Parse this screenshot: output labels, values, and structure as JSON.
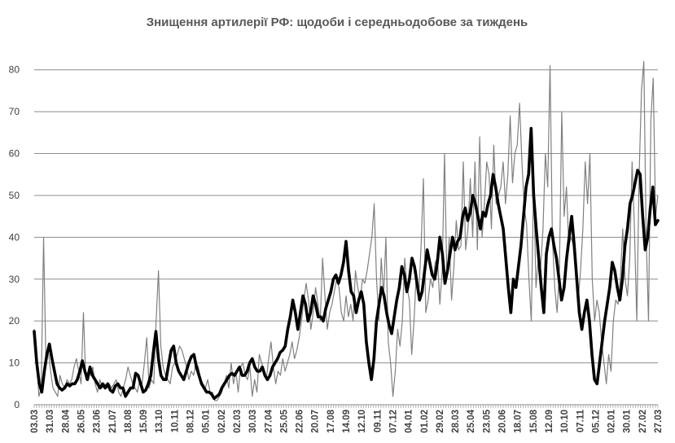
{
  "chart_data": {
    "type": "line",
    "title": "Знищення артилерії РФ: щодоби і середньодобове за тиждень",
    "xlabel": "",
    "ylabel": "",
    "ylim": [
      0,
      85
    ],
    "yticks": [
      0,
      10,
      20,
      30,
      40,
      50,
      60,
      70,
      80
    ],
    "grid": true,
    "legend": "none",
    "x_tick_labels": [
      "03.03",
      "31.03",
      "28.04",
      "26.05",
      "23.06",
      "21.07",
      "18.08",
      "15.09",
      "13.10",
      "10.11",
      "08.12",
      "05.01",
      "02.02",
      "02.03",
      "30.03",
      "27.04",
      "25.05",
      "22.06",
      "20.07",
      "17.08",
      "14.09",
      "12.10",
      "09.11",
      "07.12",
      "04.01",
      "01.02",
      "29.02",
      "28.03",
      "25.04",
      "23.05",
      "20.06",
      "18.07",
      "15.08",
      "12.09",
      "10.10",
      "07.11",
      "05.12",
      "02.01",
      "30.01",
      "27.02",
      "27.03"
    ],
    "series": [
      {
        "style": "daily",
        "color": "#808080",
        "values": [
          18,
          12,
          2,
          4,
          40,
          10,
          13,
          8,
          4,
          3,
          2,
          7,
          5,
          4,
          6,
          5,
          6,
          9,
          11,
          8,
          5,
          22,
          6,
          8,
          7,
          9,
          5,
          3,
          6,
          4,
          5,
          4,
          5,
          4,
          5,
          6,
          3,
          2,
          4,
          6,
          9,
          7,
          5,
          4,
          3,
          6,
          5,
          10,
          16,
          4,
          6,
          5,
          20,
          32,
          14,
          9,
          7,
          6,
          5,
          9,
          10,
          12,
          14,
          13,
          11,
          9,
          6,
          8,
          7,
          10,
          9,
          6,
          5,
          4,
          6,
          3,
          3,
          1,
          1,
          2,
          3,
          5,
          7,
          4,
          10,
          5,
          8,
          3,
          9,
          10,
          7,
          6,
          9,
          2,
          6,
          3,
          12,
          10,
          8,
          6,
          11,
          15,
          9,
          5,
          8,
          7,
          11,
          8,
          10,
          12,
          15,
          11,
          13,
          16,
          20,
          25,
          29,
          25,
          18,
          22,
          28,
          24,
          20,
          35,
          26,
          18,
          22,
          24,
          27,
          30,
          28,
          22,
          20,
          26,
          21,
          24,
          20,
          32,
          28,
          25,
          30,
          29,
          32,
          36,
          40,
          48,
          30,
          20,
          35,
          26,
          40,
          15,
          10,
          2,
          8,
          18,
          14,
          20,
          35,
          28,
          25,
          12,
          20,
          32,
          26,
          38,
          54,
          22,
          25,
          30,
          28,
          34,
          35,
          24,
          32,
          60,
          30,
          40,
          25,
          33,
          44,
          37,
          38,
          58,
          37,
          42,
          54,
          40,
          58,
          37,
          64,
          40,
          48,
          58,
          55,
          42,
          62,
          48,
          50,
          52,
          58,
          48,
          55,
          69,
          53,
          60,
          62,
          72,
          58,
          47,
          43,
          30,
          20,
          54,
          28,
          35,
          33,
          42,
          60,
          52,
          81,
          40,
          28,
          22,
          32,
          70,
          45,
          52,
          38,
          40,
          38,
          35,
          25,
          32,
          42,
          58,
          48,
          60,
          30,
          20,
          25,
          22,
          15,
          10,
          5,
          12,
          8,
          20,
          25,
          24,
          30,
          42,
          30,
          26,
          35,
          58,
          42,
          20,
          55,
          75,
          82,
          40,
          20,
          68,
          78,
          45,
          50
        ]
      },
      {
        "style": "weekly-average",
        "color": "#000000",
        "values": [
          17.5,
          10,
          5,
          3,
          8,
          12,
          14.5,
          11,
          8,
          5,
          4,
          3.5,
          4,
          5,
          4.5,
          5,
          5,
          6,
          8,
          10.5,
          8,
          6,
          9,
          7,
          6,
          5,
          4,
          5,
          4,
          5,
          3.5,
          3,
          4.5,
          5,
          4,
          4,
          2,
          3,
          4,
          4,
          7.5,
          7,
          5,
          3,
          3.5,
          5,
          7,
          12.5,
          17.5,
          11,
          7,
          6,
          6,
          9.5,
          13,
          14,
          10,
          8,
          7,
          6,
          8,
          10,
          11.5,
          12,
          9,
          7,
          5,
          4,
          3,
          3,
          2.5,
          1.5,
          2,
          2.5,
          4,
          5,
          6,
          7,
          7.5,
          7,
          8,
          9,
          7,
          7,
          8,
          10,
          11,
          9,
          8,
          8,
          9,
          7,
          6,
          7,
          9,
          10,
          11,
          12.5,
          13,
          14,
          18,
          21,
          25,
          22,
          18,
          22,
          26,
          24,
          20,
          22,
          26,
          24,
          21,
          21,
          20,
          23,
          25,
          27,
          30,
          31,
          29,
          31,
          34,
          39,
          32,
          27,
          26,
          22,
          25,
          27,
          24,
          15,
          10,
          6,
          11,
          20,
          24,
          28,
          26,
          22,
          19,
          17,
          21,
          25,
          28,
          33,
          31,
          27,
          30,
          35,
          33,
          29,
          25,
          27,
          32,
          37,
          34,
          31,
          30,
          34,
          40,
          36,
          29,
          32,
          36,
          40,
          37,
          39,
          40,
          45,
          47,
          44,
          46,
          50,
          48,
          45,
          42,
          46,
          45,
          48,
          50,
          55,
          52,
          48,
          45,
          42,
          35,
          28,
          22,
          30,
          28,
          33,
          38,
          45,
          52,
          55,
          66,
          50,
          42,
          35,
          28,
          22,
          36,
          40,
          42,
          38,
          35,
          30,
          25,
          28,
          35,
          40,
          45,
          38,
          30,
          22,
          18,
          22,
          25,
          20,
          12,
          6,
          5,
          10,
          15,
          20,
          24,
          28,
          34,
          32,
          28,
          25,
          30,
          38,
          42,
          48,
          50,
          53,
          56,
          55,
          45,
          37,
          40,
          47,
          52,
          43,
          44
        ]
      }
    ]
  }
}
